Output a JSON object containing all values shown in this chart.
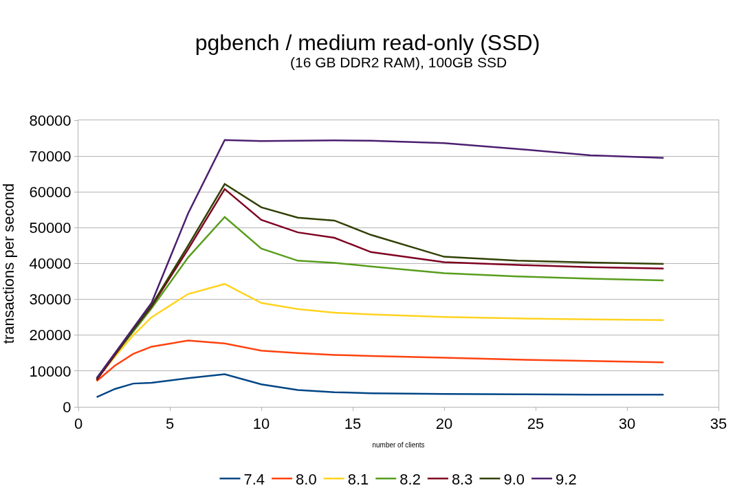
{
  "chart_data": {
    "type": "line",
    "title": "pgbench / medium read-only (SSD)",
    "subtitle": "(16 GB DDR2 RAM), 100GB SSD",
    "xlabel": "number of clients",
    "ylabel": "transactions per second",
    "x": [
      1,
      2,
      3,
      4,
      6,
      8,
      10,
      12,
      14,
      16,
      20,
      24,
      28,
      32
    ],
    "series": [
      {
        "name": "7.4",
        "color": "#004586",
        "values": [
          2700,
          5000,
          6500,
          6700,
          8000,
          9100,
          6300,
          4700,
          4100,
          3800,
          3600,
          3500,
          3400,
          3400
        ]
      },
      {
        "name": "8.0",
        "color": "#ff420e",
        "values": [
          7200,
          11500,
          14800,
          16800,
          18500,
          17700,
          15700,
          15000,
          14500,
          14200,
          13700,
          13200,
          12800,
          12400
        ]
      },
      {
        "name": "8.1",
        "color": "#ffd320",
        "values": [
          7800,
          14000,
          20000,
          25000,
          31500,
          34300,
          29000,
          27300,
          26300,
          25800,
          25100,
          24700,
          24400,
          24200
        ]
      },
      {
        "name": "8.2",
        "color": "#579d1c",
        "values": [
          7800,
          14500,
          21000,
          27500,
          41700,
          53000,
          44200,
          40800,
          40200,
          39200,
          37300,
          36400,
          35800,
          35300
        ]
      },
      {
        "name": "8.3",
        "color": "#7e0021",
        "values": [
          7500,
          14500,
          21500,
          28000,
          44000,
          60800,
          52200,
          48700,
          47200,
          43200,
          40400,
          39600,
          39000,
          38600
        ]
      },
      {
        "name": "9.0",
        "color": "#314004",
        "values": [
          7800,
          14800,
          21500,
          28300,
          45000,
          62200,
          55700,
          52800,
          52000,
          48000,
          41900,
          40800,
          40300,
          39900
        ]
      },
      {
        "name": "9.2",
        "color": "#4b1f6f",
        "values": [
          8000,
          15000,
          22000,
          29000,
          54000,
          74500,
          74200,
          74300,
          74400,
          74300,
          73600,
          72000,
          70200,
          69500
        ]
      }
    ],
    "xlim": [
      0,
      35
    ],
    "xticks": [
      0,
      5,
      10,
      15,
      20,
      25,
      30,
      35
    ],
    "ylim": [
      0,
      80000
    ],
    "yticks": [
      0,
      10000,
      20000,
      30000,
      40000,
      50000,
      60000,
      70000,
      80000
    ],
    "grid": "y",
    "legend": "bottom",
    "marker": "none",
    "line_style": "solid"
  }
}
